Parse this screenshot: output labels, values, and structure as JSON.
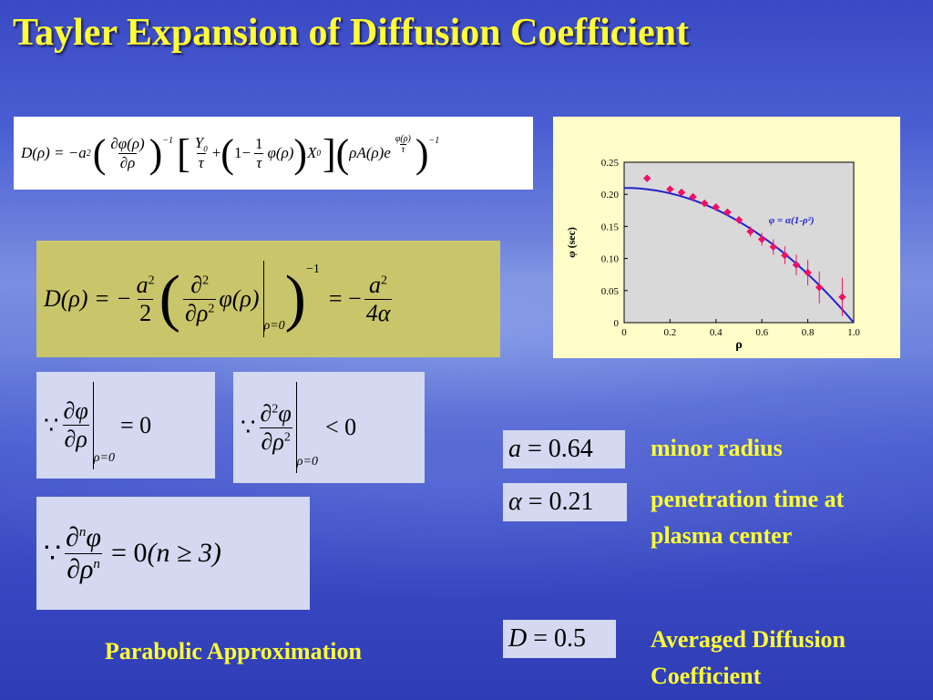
{
  "slide": {
    "title": "Tayler Expansion of Diffusion Coefficient"
  },
  "equations": {
    "main": {
      "lhs": "D(ρ) = −a",
      "lhs_sup": "2",
      "dphi": "∂φ(ρ)",
      "drho": "∂ρ",
      "exp_m1": "−1",
      "Y0": "Y",
      "Y0_sub": "0",
      "tau": "τ",
      "plus": "+",
      "one": "1",
      "minus": "−",
      "phi_rho": "φ(ρ)",
      "X0": "X",
      "X0_sub": "0",
      "rhoA": "ρA(ρ)e",
      "e_num": "φ(ρ)",
      "e_den": "τ"
    },
    "parabolic": {
      "lhs": "D(ρ) = −",
      "a2": "a",
      "sup2": "2",
      "two": "2",
      "d2": "∂",
      "d2_den": "∂ρ",
      "phi_rho": "φ(ρ)",
      "eval": "ρ=0",
      "exp_m1": "−1",
      "rhs": "= −",
      "four_alpha": "4α"
    },
    "first_deriv": {
      "because": "∵",
      "num": "∂φ",
      "den": "∂ρ",
      "eval": "ρ=0",
      "rhs": "= 0"
    },
    "second_deriv": {
      "because": "∵",
      "num": "∂",
      "num_sup": "2",
      "num_tail": "φ",
      "den": "∂ρ",
      "den_sup": "2",
      "eval": "ρ=0",
      "rhs": "< 0"
    },
    "nth_deriv": {
      "because": "∵",
      "num": "∂",
      "num_sup": "n",
      "num_tail": "φ",
      "den": "∂ρ",
      "den_sup": "n",
      "rhs": "= 0",
      "cond": "(n ≥ 3)"
    }
  },
  "parameters": [
    {
      "symbol": "a",
      "value": "= 0.64",
      "description": "minor radius"
    },
    {
      "symbol": "α",
      "value": "= 0.21",
      "description": "penetration time at plasma center"
    },
    {
      "symbol": "D",
      "value": "= 0.5",
      "description": "Averaged Diffusion Coefficient"
    }
  ],
  "labels": {
    "parabolic_approx": "Parabolic Approximation",
    "param1_line1": "minor radius",
    "param2_line1": "penetration time at",
    "param2_line2": "plasma center",
    "param3_line1": "Averaged Diffusion",
    "param3_line2": "Coefficient"
  },
  "colors": {
    "title": "#ffff33",
    "fit_line": "#2222cc",
    "data_points": "#ee1166",
    "chart_bg": "#fffec8",
    "plot_bg": "#d9d9d9"
  },
  "chart_data": {
    "type": "scatter",
    "xlabel": "ρ",
    "ylabel": "φ (sec)",
    "xlim": [
      0,
      1.0
    ],
    "ylim": [
      0,
      0.25
    ],
    "xticks": [
      "0",
      "0.2",
      "0.4",
      "0.6",
      "0.8",
      "1.0"
    ],
    "yticks": [
      "0",
      "0.05",
      "0.10",
      "0.15",
      "0.20",
      "0.25"
    ],
    "annotation": "φ = α(1-ρ²)",
    "series": [
      {
        "name": "data",
        "x": [
          0.1,
          0.2,
          0.25,
          0.3,
          0.35,
          0.4,
          0.45,
          0.5,
          0.55,
          0.6,
          0.65,
          0.7,
          0.75,
          0.8,
          0.85,
          0.95
        ],
        "y": [
          0.225,
          0.208,
          0.203,
          0.196,
          0.186,
          0.18,
          0.172,
          0.16,
          0.142,
          0.13,
          0.118,
          0.105,
          0.09,
          0.078,
          0.055,
          0.04
        ],
        "err": [
          0.004,
          0.004,
          0.004,
          0.004,
          0.005,
          0.005,
          0.005,
          0.006,
          0.008,
          0.01,
          0.012,
          0.014,
          0.016,
          0.02,
          0.025,
          0.03
        ]
      },
      {
        "name": "fit",
        "alpha": 0.21,
        "x": [
          0,
          0.1,
          0.2,
          0.3,
          0.4,
          0.5,
          0.6,
          0.7,
          0.8,
          0.9,
          1.0
        ],
        "y": [
          0.21,
          0.2079,
          0.2016,
          0.1911,
          0.1764,
          0.1575,
          0.1344,
          0.1071,
          0.0756,
          0.0399,
          0.0
        ]
      }
    ]
  }
}
